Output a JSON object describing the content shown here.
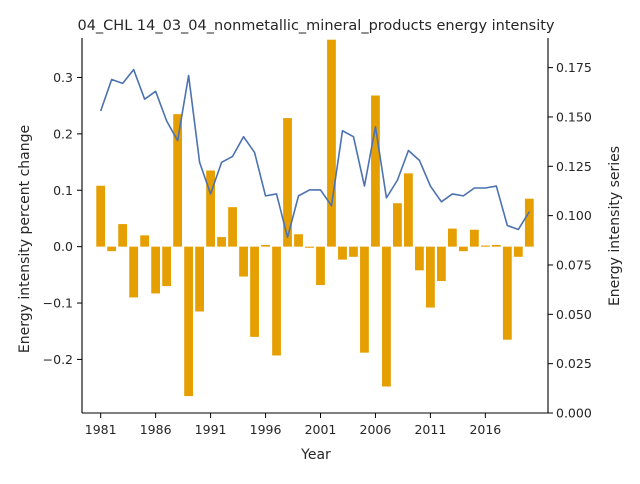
{
  "chart_data": {
    "type": "bar+line",
    "title": "04_CHL 14_03_04_nonmetallic_mineral_products energy intensity",
    "xlabel": "Year",
    "ylabel_left": "Energy intensity percent change",
    "ylabel_right": "Energy intensity series",
    "xlim": [
      1979.3,
      2021.7
    ],
    "ylim_left": [
      -0.295,
      0.37
    ],
    "ylim_right": [
      0.0,
      0.19
    ],
    "x_ticks": [
      1981,
      1986,
      1991,
      1996,
      2001,
      2006,
      2011,
      2016
    ],
    "y_ticks_left": [
      -0.2,
      -0.1,
      0.0,
      0.1,
      0.2,
      0.3
    ],
    "y_ticks_left_labels": [
      "−0.2",
      "−0.1",
      "0.0",
      "0.1",
      "0.2",
      "0.3"
    ],
    "y_ticks_right": [
      0.0,
      0.025,
      0.05,
      0.075,
      0.1,
      0.125,
      0.15,
      0.175
    ],
    "y_ticks_right_labels": [
      "0.000",
      "0.025",
      "0.050",
      "0.075",
      "0.100",
      "0.125",
      "0.150",
      "0.175"
    ],
    "bar_color": "#E69F00",
    "line_color": "#4C72B0",
    "bars": {
      "x": [
        1981,
        1982,
        1983,
        1984,
        1985,
        1986,
        1987,
        1988,
        1989,
        1990,
        1991,
        1992,
        1993,
        1994,
        1995,
        1996,
        1997,
        1998,
        1999,
        2000,
        2001,
        2002,
        2003,
        2004,
        2005,
        2006,
        2007,
        2008,
        2009,
        2010,
        2011,
        2012,
        2013,
        2014,
        2015,
        2016,
        2017,
        2018,
        2019,
        2020
      ],
      "values": [
        0.108,
        -0.008,
        0.04,
        -0.09,
        0.02,
        -0.083,
        -0.07,
        0.235,
        -0.265,
        -0.115,
        0.135,
        0.017,
        0.07,
        -0.053,
        -0.16,
        0.003,
        -0.193,
        0.228,
        0.022,
        -0.002,
        -0.068,
        0.367,
        -0.023,
        -0.018,
        -0.188,
        0.268,
        -0.248,
        0.077,
        0.13,
        -0.042,
        -0.108,
        -0.061,
        0.032,
        -0.008,
        0.03,
        0.002,
        0.003,
        -0.165,
        -0.018,
        0.085
      ]
    },
    "line": {
      "x": [
        1981,
        1982,
        1983,
        1984,
        1985,
        1986,
        1987,
        1988,
        1989,
        1990,
        1991,
        1992,
        1993,
        1994,
        1995,
        1996,
        1997,
        1998,
        1999,
        2000,
        2001,
        2002,
        2003,
        2004,
        2005,
        2006,
        2007,
        2008,
        2009,
        2010,
        2011,
        2012,
        2013,
        2014,
        2015,
        2016,
        2017,
        2018,
        2019,
        2020
      ],
      "values": [
        0.153,
        0.169,
        0.167,
        0.174,
        0.159,
        0.163,
        0.148,
        0.138,
        0.171,
        0.127,
        0.111,
        0.127,
        0.13,
        0.14,
        0.132,
        0.11,
        0.111,
        0.089,
        0.11,
        0.113,
        0.113,
        0.105,
        0.143,
        0.14,
        0.115,
        0.145,
        0.109,
        0.118,
        0.133,
        0.128,
        0.115,
        0.107,
        0.111,
        0.11,
        0.114,
        0.114,
        0.115,
        0.095,
        0.093,
        0.102
      ]
    }
  }
}
